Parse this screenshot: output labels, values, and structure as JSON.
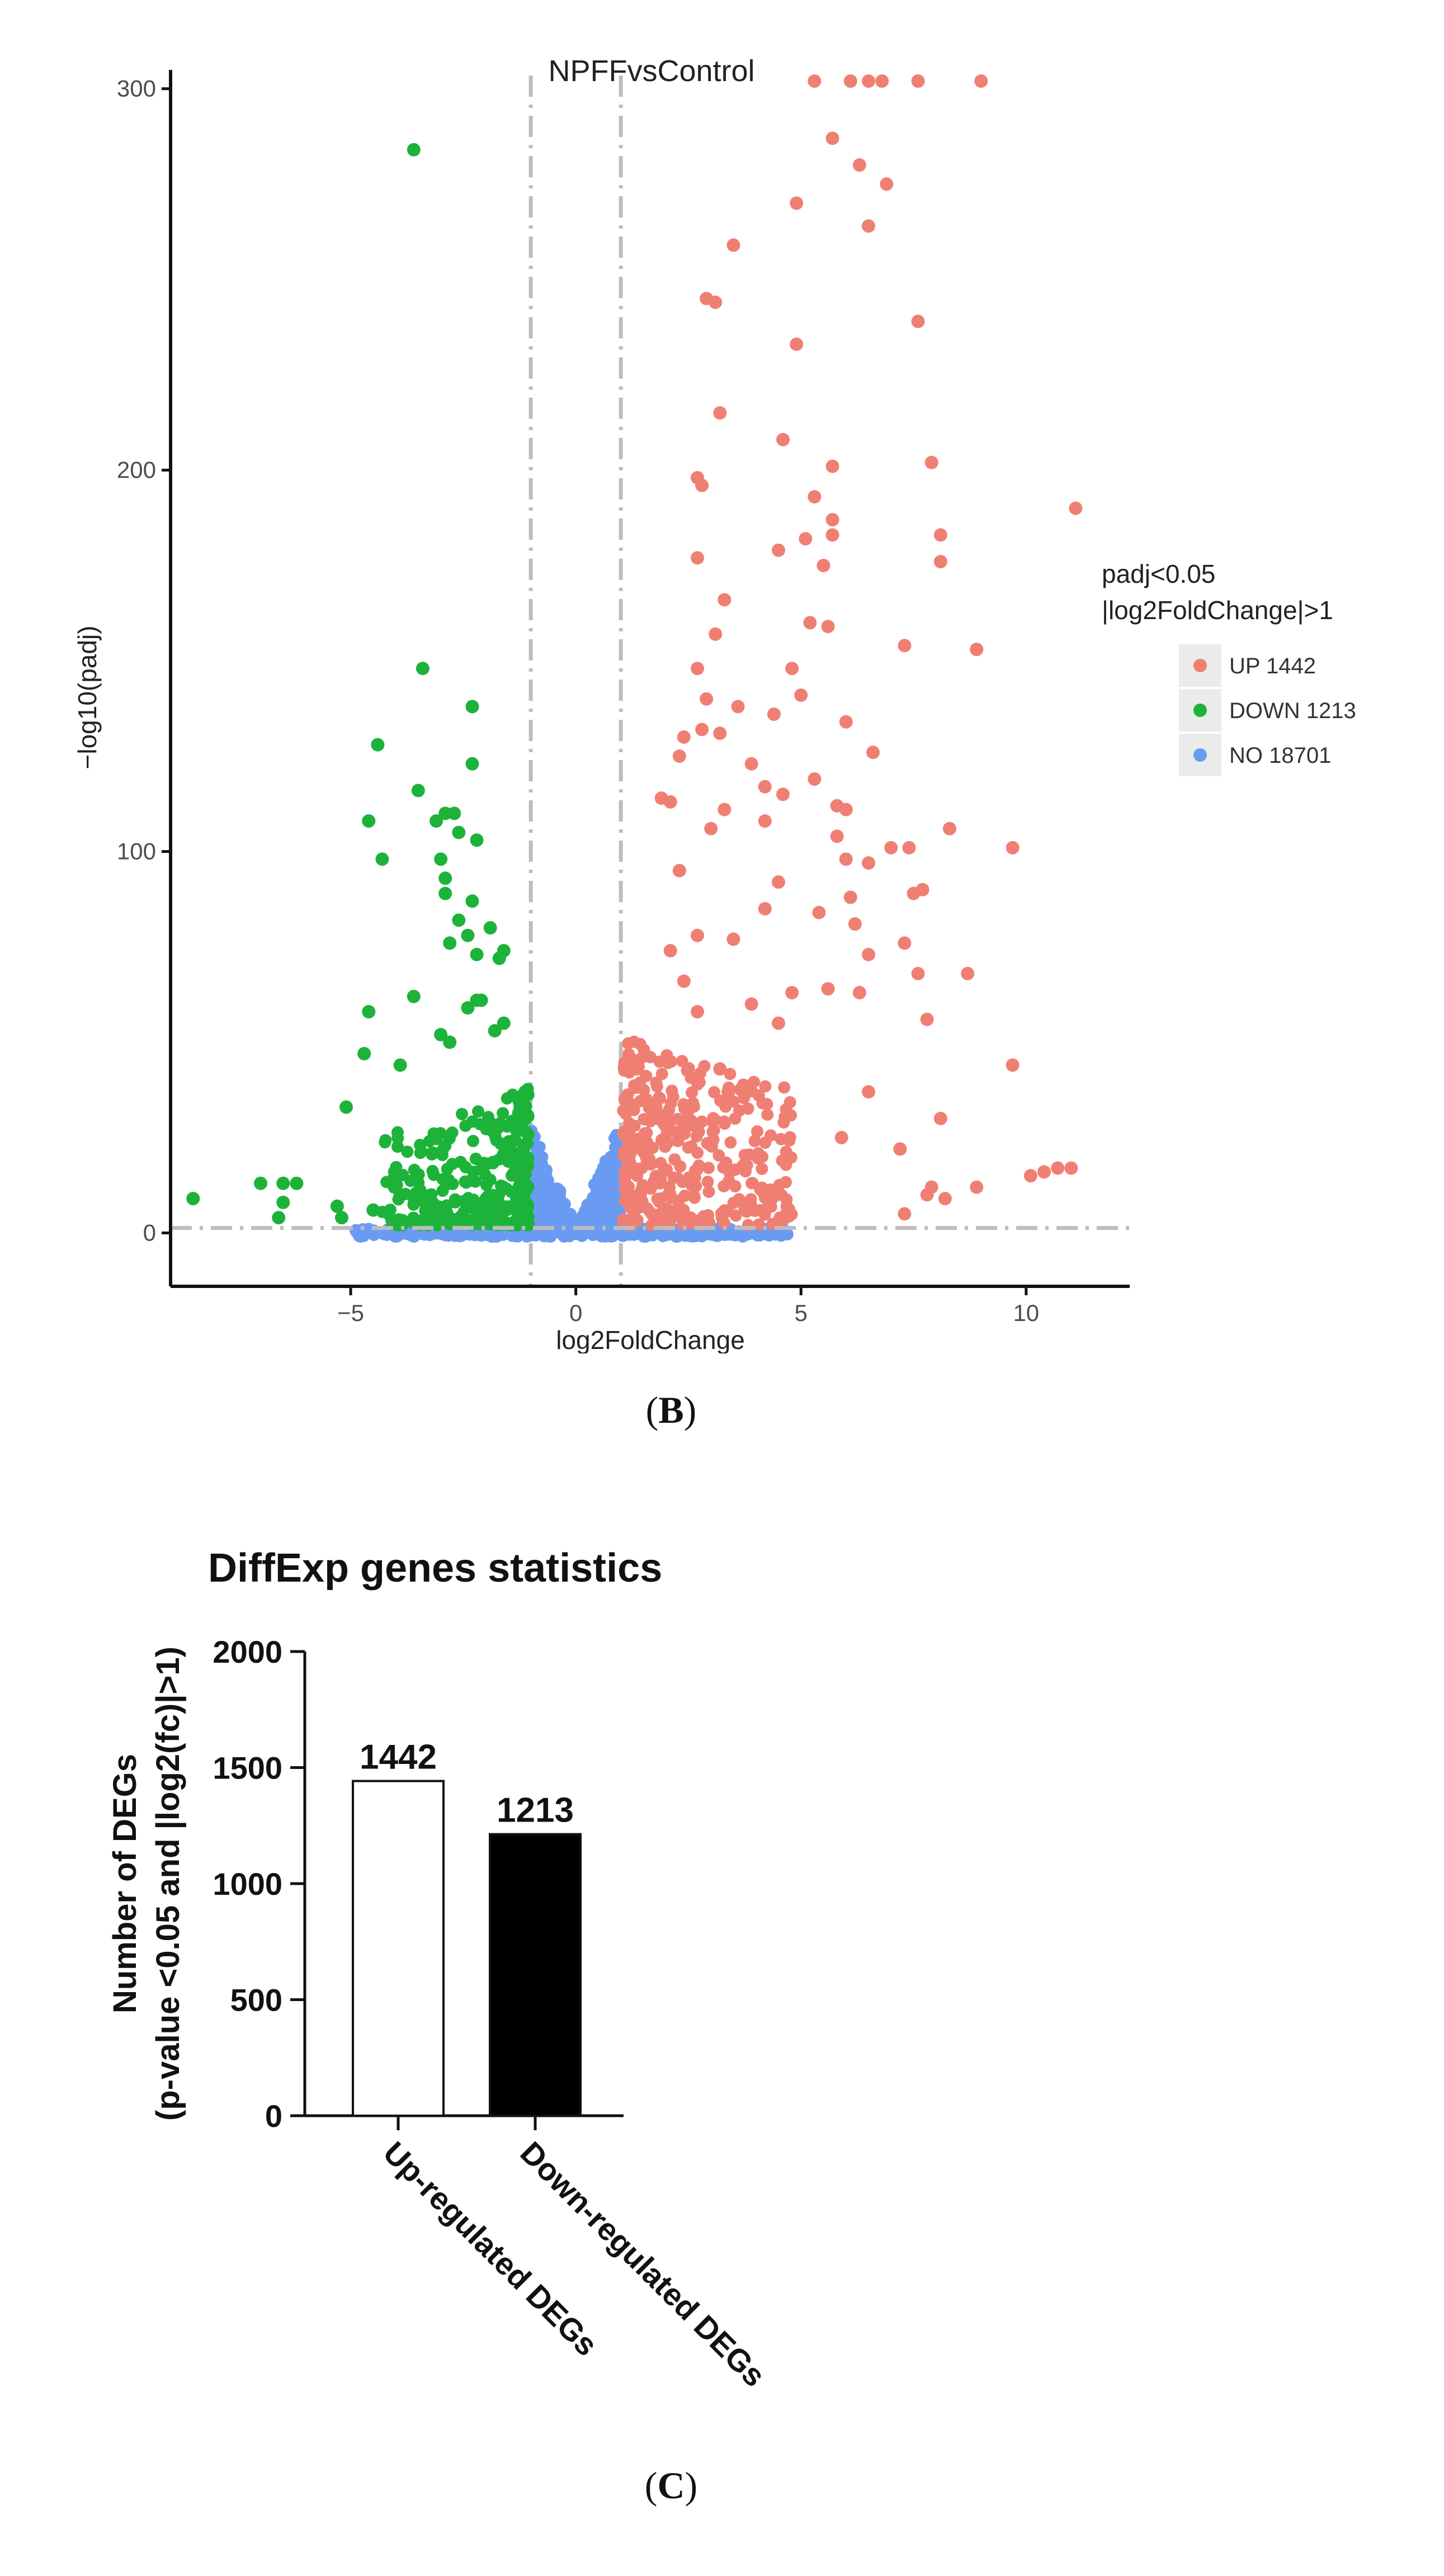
{
  "panels": {
    "b": {
      "open": "(",
      "letter": "B",
      "close": ")"
    },
    "c": {
      "open": "(",
      "letter": "C",
      "close": ")"
    }
  },
  "chart_data": [
    {
      "type": "scatter",
      "title": "NPFFvsControl",
      "xlabel": "log2FoldChange",
      "ylabel": "−log10(padj)",
      "xlim": [
        -9,
        12.3
      ],
      "ylim": [
        -14,
        302
      ],
      "x_ticks": [
        -5,
        0,
        5,
        10
      ],
      "x_tick_labels": [
        "−5",
        "0",
        "5",
        "10"
      ],
      "y_ticks": [
        0,
        100,
        200,
        300
      ],
      "y_tick_labels": [
        "0",
        "100",
        "200",
        "300"
      ],
      "thresholds": {
        "log2fc": [
          -1,
          1
        ],
        "neglog10_padj": 1.3
      },
      "grid": false,
      "legend": {
        "title_line1": "padj<0.05",
        "title_line2": "|log2FoldChange|>1",
        "position": "right",
        "entries": [
          {
            "key": "up",
            "label": "UP 1442",
            "count": 1442,
            "color": "#F07F73"
          },
          {
            "key": "down",
            "label": "DOWN 1213",
            "count": 1213,
            "color": "#1DB33A"
          },
          {
            "key": "no",
            "label": "NO 18701",
            "count": 18701,
            "color": "#6A9BF2"
          }
        ]
      },
      "series": [
        {
          "name": "UP",
          "color": "#F07F73",
          "points": [
            [
              5.3,
              302
            ],
            [
              6.1,
              302
            ],
            [
              6.5,
              302
            ],
            [
              6.8,
              302
            ],
            [
              7.6,
              302
            ],
            [
              9.0,
              302
            ],
            [
              5.7,
              287
            ],
            [
              6.3,
              280
            ],
            [
              6.9,
              275
            ],
            [
              4.9,
              270
            ],
            [
              6.5,
              264
            ],
            [
              3.5,
              259
            ],
            [
              2.9,
              245
            ],
            [
              3.1,
              244
            ],
            [
              7.6,
              239
            ],
            [
              4.9,
              233
            ],
            [
              3.2,
              215
            ],
            [
              4.6,
              208
            ],
            [
              7.9,
              202
            ],
            [
              5.7,
              201
            ],
            [
              2.7,
              198
            ],
            [
              2.8,
              196
            ],
            [
              11.1,
              190
            ],
            [
              5.3,
              193
            ],
            [
              5.7,
              187
            ],
            [
              8.1,
              183
            ],
            [
              5.7,
              183
            ],
            [
              5.1,
              182
            ],
            [
              4.5,
              179
            ],
            [
              2.7,
              177
            ],
            [
              8.1,
              176
            ],
            [
              5.5,
              175
            ],
            [
              3.3,
              166
            ],
            [
              5.2,
              160
            ],
            [
              5.6,
              159
            ],
            [
              3.1,
              157
            ],
            [
              7.3,
              154
            ],
            [
              8.9,
              153
            ],
            [
              4.8,
              148
            ],
            [
              2.7,
              148
            ],
            [
              2.9,
              140
            ],
            [
              5.0,
              141
            ],
            [
              3.6,
              138
            ],
            [
              4.4,
              136
            ],
            [
              2.8,
              132
            ],
            [
              6.0,
              134
            ],
            [
              3.2,
              131
            ],
            [
              2.4,
              130
            ],
            [
              6.6,
              126
            ],
            [
              2.3,
              125
            ],
            [
              3.9,
              123
            ],
            [
              5.3,
              119
            ],
            [
              4.2,
              117
            ],
            [
              4.6,
              115
            ],
            [
              1.9,
              114
            ],
            [
              2.1,
              113
            ],
            [
              5.8,
              112
            ],
            [
              3.3,
              111
            ],
            [
              6.0,
              111
            ],
            [
              4.2,
              108
            ],
            [
              3.0,
              106
            ],
            [
              5.8,
              104
            ],
            [
              8.3,
              106
            ],
            [
              9.7,
              101
            ],
            [
              7.0,
              101
            ],
            [
              7.4,
              101
            ],
            [
              6.0,
              98
            ],
            [
              6.5,
              97
            ],
            [
              2.3,
              95
            ],
            [
              4.5,
              92
            ],
            [
              7.5,
              89
            ],
            [
              7.7,
              90
            ],
            [
              6.1,
              88
            ],
            [
              4.2,
              85
            ],
            [
              5.4,
              84
            ],
            [
              6.2,
              81
            ],
            [
              2.7,
              78
            ],
            [
              3.5,
              77
            ],
            [
              7.3,
              76
            ],
            [
              2.1,
              74
            ],
            [
              6.5,
              73
            ],
            [
              8.7,
              68
            ],
            [
              7.6,
              68
            ],
            [
              2.4,
              66
            ],
            [
              5.6,
              64
            ],
            [
              4.8,
              63
            ],
            [
              6.3,
              63
            ],
            [
              3.9,
              60
            ],
            [
              2.7,
              58
            ],
            [
              7.8,
              56
            ],
            [
              4.5,
              55
            ],
            [
              9.7,
              44
            ],
            [
              3.2,
              43
            ],
            [
              6.5,
              37
            ],
            [
              8.1,
              30
            ],
            [
              5.9,
              25
            ],
            [
              7.2,
              22
            ],
            [
              10.4,
              16
            ],
            [
              10.7,
              17
            ],
            [
              11.0,
              17
            ],
            [
              10.1,
              15
            ],
            [
              8.9,
              12
            ],
            [
              7.8,
              10
            ],
            [
              8.2,
              9
            ],
            [
              7.9,
              12
            ],
            [
              7.3,
              5
            ]
          ],
          "cluster": {
            "x_range": [
              1.05,
              4.8
            ],
            "y_range": [
              2,
              52
            ],
            "count": 360
          }
        },
        {
          "name": "DOWN",
          "color": "#1DB33A",
          "points": [
            [
              -3.6,
              284
            ],
            [
              -3.4,
              148
            ],
            [
              -2.3,
              138
            ],
            [
              -4.4,
              128
            ],
            [
              -2.3,
              123
            ],
            [
              -3.5,
              116
            ],
            [
              -4.6,
              108
            ],
            [
              -2.9,
              110
            ],
            [
              -2.7,
              110
            ],
            [
              -3.1,
              108
            ],
            [
              -2.6,
              105
            ],
            [
              -2.2,
              103
            ],
            [
              -4.3,
              98
            ],
            [
              -3.0,
              98
            ],
            [
              -2.9,
              93
            ],
            [
              -2.9,
              89
            ],
            [
              -2.3,
              87
            ],
            [
              -2.6,
              82
            ],
            [
              -1.9,
              80
            ],
            [
              -2.4,
              78
            ],
            [
              -2.8,
              76
            ],
            [
              -1.6,
              74
            ],
            [
              -2.2,
              73
            ],
            [
              -1.7,
              72
            ],
            [
              -3.6,
              62
            ],
            [
              -2.2,
              61
            ],
            [
              -2.1,
              61
            ],
            [
              -2.4,
              59
            ],
            [
              -4.6,
              58
            ],
            [
              -1.6,
              55
            ],
            [
              -1.8,
              53
            ],
            [
              -3.0,
              52
            ],
            [
              -2.8,
              50
            ],
            [
              -4.7,
              47
            ],
            [
              -3.9,
              44
            ],
            [
              -5.1,
              33
            ],
            [
              -6.5,
              13
            ],
            [
              -7.0,
              13
            ],
            [
              -6.2,
              13
            ],
            [
              -8.5,
              9
            ],
            [
              -6.5,
              8
            ],
            [
              -6.6,
              4
            ],
            [
              -5.3,
              7
            ],
            [
              -4.5,
              6
            ],
            [
              -5.2,
              4
            ]
          ],
          "cluster": {
            "x_range": [
              -4.3,
              -1.05
            ],
            "y_range": [
              2,
              42
            ],
            "count": 300
          }
        },
        {
          "name": "NO",
          "color": "#6A9BF2",
          "cluster": {
            "x_range": [
              -4.9,
              4.7
            ],
            "y_range": [
              -1,
              31
            ],
            "count": 900
          }
        }
      ]
    },
    {
      "type": "bar",
      "title": "DiffExp genes statistics",
      "xlabel": "",
      "ylabel_line1": "Number of DEGs",
      "ylabel_line2": "(p-value <0.05 and |log2(fc)|>1)",
      "ylim": [
        0,
        2000
      ],
      "y_ticks": [
        0,
        500,
        1000,
        1500,
        2000
      ],
      "y_tick_labels": [
        "0",
        "500",
        "1000",
        "1500",
        "2000"
      ],
      "categories": [
        "Up-regulated DEGs",
        "Down-regulated DEGs"
      ],
      "values": [
        1442,
        1213
      ],
      "data_labels": [
        "1442",
        "1213"
      ],
      "bar_fills": [
        "#ffffff",
        "#000000"
      ],
      "grid": false
    }
  ]
}
